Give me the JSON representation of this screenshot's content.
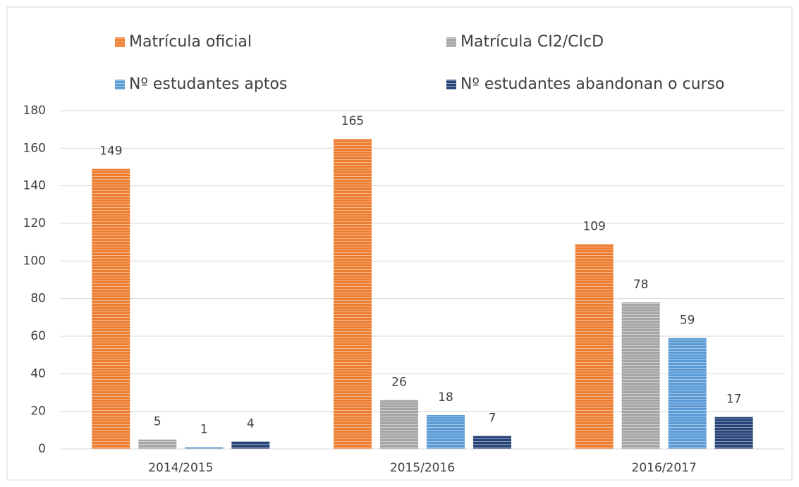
{
  "chart_data": {
    "type": "bar",
    "categories": [
      "2014/2015",
      "2015/2016",
      "2016/2017"
    ],
    "series": [
      {
        "name": "Matrícula oficial",
        "color": "#ed7d31",
        "values": [
          149,
          165,
          109
        ]
      },
      {
        "name": "Matrícula CI2/CIcD",
        "color": "#a5a5a5",
        "values": [
          5,
          26,
          78
        ]
      },
      {
        "name": "Nº estudantes aptos",
        "color": "#5b9bd5",
        "values": [
          1,
          18,
          59
        ]
      },
      {
        "name": "Nº estudantes abandonan o curso",
        "color": "#264478",
        "values": [
          4,
          7,
          17
        ]
      }
    ],
    "ylim": [
      0,
      180
    ],
    "yticks": [
      0,
      20,
      40,
      60,
      80,
      100,
      120,
      140,
      160,
      180
    ],
    "grid": true,
    "legend": "top"
  }
}
